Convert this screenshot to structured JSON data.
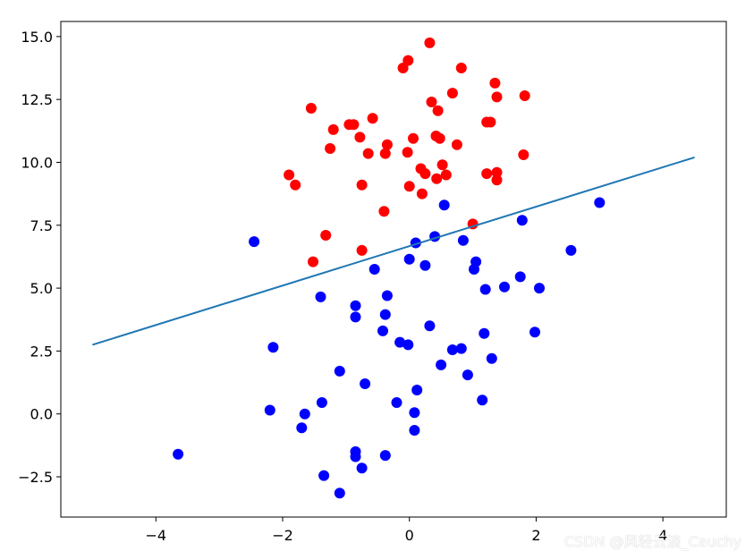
{
  "chart_data": {
    "type": "scatter",
    "title": "",
    "xlabel": "",
    "ylabel": "",
    "xlim": [
      -5.5,
      5.0
    ],
    "ylim": [
      -4.1,
      15.6
    ],
    "grid": false,
    "x_ticks": [
      -4,
      -2,
      0,
      2,
      4
    ],
    "x_tick_labels": [
      "−4",
      "−2",
      "0",
      "2",
      "4"
    ],
    "y_ticks": [
      -2.5,
      0.0,
      2.5,
      5.0,
      7.5,
      10.0,
      12.5,
      15.0
    ],
    "y_tick_labels": [
      "−2.5",
      "0.0",
      "2.5",
      "5.0",
      "7.5",
      "10.0",
      "12.5",
      "15.0"
    ],
    "series": [
      {
        "color": "#ff0000",
        "points": [
          [
            0.32,
            14.75
          ],
          [
            -0.02,
            14.05
          ],
          [
            -0.1,
            13.75
          ],
          [
            0.82,
            13.75
          ],
          [
            1.35,
            13.15
          ],
          [
            0.68,
            12.75
          ],
          [
            1.38,
            12.6
          ],
          [
            1.82,
            12.65
          ],
          [
            0.35,
            12.4
          ],
          [
            0.45,
            12.05
          ],
          [
            -1.55,
            12.15
          ],
          [
            -0.58,
            11.75
          ],
          [
            -0.95,
            11.5
          ],
          [
            -0.88,
            11.5
          ],
          [
            -1.2,
            11.3
          ],
          [
            1.22,
            11.6
          ],
          [
            1.28,
            11.6
          ],
          [
            0.42,
            11.05
          ],
          [
            0.48,
            10.95
          ],
          [
            0.06,
            10.95
          ],
          [
            -0.78,
            11.0
          ],
          [
            -0.35,
            10.7
          ],
          [
            0.75,
            10.7
          ],
          [
            -1.25,
            10.55
          ],
          [
            -0.65,
            10.35
          ],
          [
            -0.38,
            10.35
          ],
          [
            -0.03,
            10.4
          ],
          [
            1.8,
            10.3
          ],
          [
            0.52,
            9.9
          ],
          [
            0.18,
            9.75
          ],
          [
            0.25,
            9.55
          ],
          [
            0.43,
            9.35
          ],
          [
            0.58,
            9.5
          ],
          [
            1.22,
            9.55
          ],
          [
            1.38,
            9.6
          ],
          [
            1.38,
            9.3
          ],
          [
            -1.9,
            9.5
          ],
          [
            -1.8,
            9.1
          ],
          [
            -0.75,
            9.1
          ],
          [
            0.0,
            9.05
          ],
          [
            0.2,
            8.75
          ],
          [
            -0.4,
            8.05
          ],
          [
            1.0,
            7.55
          ],
          [
            -1.32,
            7.1
          ],
          [
            -0.75,
            6.5
          ],
          [
            -1.52,
            6.05
          ]
        ]
      },
      {
        "color": "#0000ff",
        "points": [
          [
            3.0,
            8.4
          ],
          [
            0.55,
            8.3
          ],
          [
            1.78,
            7.7
          ],
          [
            -2.45,
            6.85
          ],
          [
            0.4,
            7.05
          ],
          [
            0.1,
            6.8
          ],
          [
            0.85,
            6.9
          ],
          [
            2.55,
            6.5
          ],
          [
            0.0,
            6.15
          ],
          [
            1.05,
            6.05
          ],
          [
            0.25,
            5.9
          ],
          [
            1.02,
            5.75
          ],
          [
            -0.55,
            5.75
          ],
          [
            1.75,
            5.45
          ],
          [
            1.5,
            5.05
          ],
          [
            2.05,
            5.0
          ],
          [
            1.2,
            4.95
          ],
          [
            -1.4,
            4.65
          ],
          [
            -0.35,
            4.7
          ],
          [
            -0.85,
            4.3
          ],
          [
            -0.85,
            3.85
          ],
          [
            -0.38,
            3.95
          ],
          [
            0.32,
            3.5
          ],
          [
            -0.42,
            3.3
          ],
          [
            1.18,
            3.2
          ],
          [
            1.98,
            3.25
          ],
          [
            -2.15,
            2.65
          ],
          [
            -0.15,
            2.85
          ],
          [
            -0.02,
            2.75
          ],
          [
            0.68,
            2.55
          ],
          [
            0.82,
            2.6
          ],
          [
            1.3,
            2.2
          ],
          [
            0.5,
            1.95
          ],
          [
            -1.1,
            1.7
          ],
          [
            0.92,
            1.55
          ],
          [
            -0.7,
            1.2
          ],
          [
            0.12,
            0.95
          ],
          [
            1.15,
            0.55
          ],
          [
            -1.38,
            0.45
          ],
          [
            -0.2,
            0.45
          ],
          [
            -2.2,
            0.15
          ],
          [
            -1.65,
            0.0
          ],
          [
            0.08,
            0.05
          ],
          [
            -1.7,
            -0.55
          ],
          [
            0.08,
            -0.65
          ],
          [
            -3.65,
            -1.6
          ],
          [
            -0.85,
            -1.5
          ],
          [
            -0.85,
            -1.7
          ],
          [
            -0.38,
            -1.65
          ],
          [
            -0.75,
            -2.15
          ],
          [
            -1.35,
            -2.45
          ],
          [
            -1.1,
            -3.15
          ]
        ]
      }
    ],
    "line": {
      "color": "#1f77b4",
      "x": [
        -5.0,
        4.5
      ],
      "y": [
        2.75,
        10.2
      ]
    }
  },
  "watermark": "CSDN @风轻云淡_Cauchy"
}
